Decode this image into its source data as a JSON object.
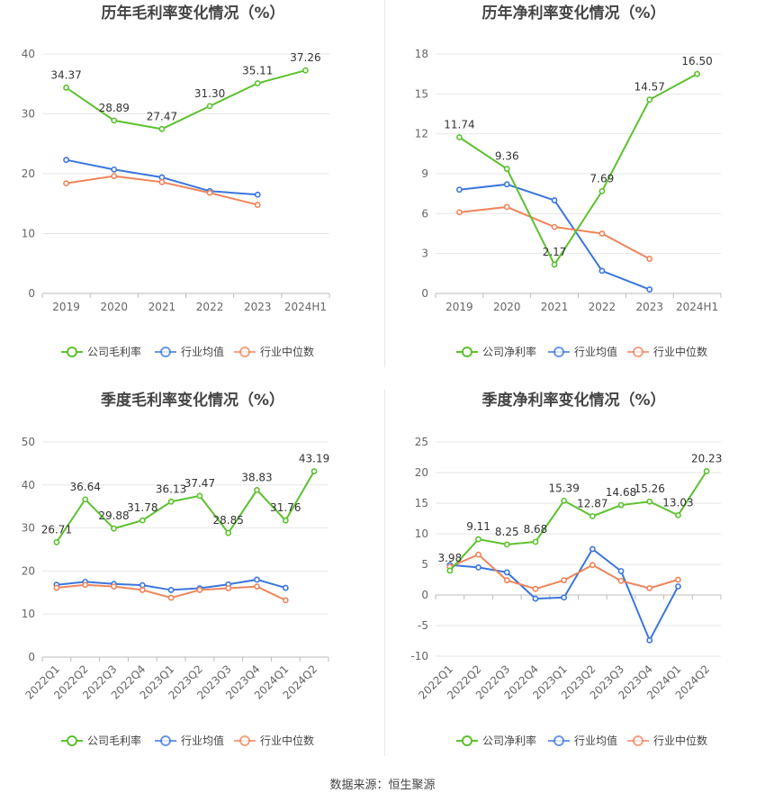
{
  "source_label": "数据来源：恒生聚源",
  "colors": {
    "company": "#5cc12e",
    "industry_avg": "#3a76dd",
    "industry_median": "#f0845a",
    "grid": "#e6e6e6",
    "axis": "#bbbbbb",
    "tick_text": "#666666",
    "title_text": "#444444"
  },
  "chart_data": [
    {
      "type": "line",
      "title": "历年毛利率变化情况（%）",
      "categories": [
        "2019",
        "2020",
        "2021",
        "2022",
        "2023",
        "2024H1"
      ],
      "ylim": [
        0,
        40
      ],
      "yticks": [
        0,
        10,
        20,
        30,
        40
      ],
      "grid": true,
      "legend": "bottom",
      "series": [
        {
          "name": "公司毛利率",
          "color_key": "company",
          "labels": true,
          "values": [
            34.37,
            28.89,
            27.47,
            31.3,
            35.11,
            37.26
          ]
        },
        {
          "name": "行业均值",
          "color_key": "industry_avg",
          "labels": false,
          "values": [
            22.3,
            20.7,
            19.4,
            17.1,
            16.5,
            null
          ]
        },
        {
          "name": "行业中位数",
          "color_key": "industry_median",
          "labels": false,
          "values": [
            18.4,
            19.6,
            18.6,
            16.8,
            14.8,
            null
          ]
        }
      ],
      "data_labels": [
        "34.37",
        "28.89",
        "27.47",
        "31.30",
        "35.11",
        "37.26"
      ]
    },
    {
      "type": "line",
      "title": "历年净利率变化情况（%）",
      "categories": [
        "2019",
        "2020",
        "2021",
        "2022",
        "2023",
        "2024H1"
      ],
      "ylim": [
        0,
        18
      ],
      "yticks": [
        0,
        3,
        6,
        9,
        12,
        15,
        18
      ],
      "grid": true,
      "legend": "bottom",
      "series": [
        {
          "name": "公司净利率",
          "color_key": "company",
          "labels": true,
          "values": [
            11.74,
            9.36,
            2.17,
            7.69,
            14.57,
            16.5
          ]
        },
        {
          "name": "行业均值",
          "color_key": "industry_avg",
          "labels": false,
          "values": [
            7.8,
            8.2,
            7.0,
            1.7,
            0.3,
            null
          ]
        },
        {
          "name": "行业中位数",
          "color_key": "industry_median",
          "labels": false,
          "values": [
            6.1,
            6.5,
            5.0,
            4.5,
            2.6,
            null
          ]
        }
      ],
      "data_labels": [
        "11.74",
        "9.36",
        "2.17",
        "7.69",
        "14.57",
        "16.50"
      ]
    },
    {
      "type": "line",
      "title": "季度毛利率变化情况（%）",
      "categories": [
        "2022Q1",
        "2022Q2",
        "2022Q3",
        "2022Q4",
        "2023Q1",
        "2023Q2",
        "2023Q3",
        "2023Q4",
        "2024Q1",
        "2024Q2"
      ],
      "ylim": [
        0,
        50
      ],
      "yticks": [
        0,
        10,
        20,
        30,
        40,
        50
      ],
      "grid": true,
      "legend": "bottom",
      "rotate_x_labels": true,
      "series": [
        {
          "name": "公司毛利率",
          "color_key": "company",
          "labels": true,
          "values": [
            26.71,
            36.64,
            29.88,
            31.78,
            36.13,
            37.47,
            28.85,
            38.83,
            31.76,
            43.19
          ]
        },
        {
          "name": "行业均值",
          "color_key": "industry_avg",
          "labels": false,
          "values": [
            16.8,
            17.5,
            17.0,
            16.7,
            15.6,
            16.0,
            16.9,
            18.0,
            16.1,
            null
          ]
        },
        {
          "name": "行业中位数",
          "color_key": "industry_median",
          "labels": false,
          "values": [
            16.1,
            16.8,
            16.4,
            15.6,
            13.8,
            15.6,
            16.0,
            16.4,
            13.2,
            null
          ]
        }
      ],
      "data_labels": [
        "26.71",
        "36.64",
        "29.88",
        "31.78",
        "36.13",
        "37.47",
        "28.85",
        "38.83",
        "31.76",
        "43.19"
      ]
    },
    {
      "type": "line",
      "title": "季度净利率变化情况（%）",
      "categories": [
        "2022Q1",
        "2022Q2",
        "2022Q3",
        "2022Q4",
        "2023Q1",
        "2023Q2",
        "2023Q3",
        "2023Q4",
        "2024Q1",
        "2024Q2"
      ],
      "ylim": [
        -10,
        25
      ],
      "yticks": [
        -10,
        -5,
        0,
        5,
        10,
        15,
        20,
        25
      ],
      "grid": true,
      "legend": "bottom",
      "rotate_x_labels": true,
      "series": [
        {
          "name": "公司净利率",
          "color_key": "company",
          "labels": true,
          "values": [
            3.98,
            9.11,
            8.25,
            8.68,
            15.39,
            12.87,
            14.68,
            15.26,
            13.03,
            20.23
          ]
        },
        {
          "name": "行业均值",
          "color_key": "industry_avg",
          "labels": false,
          "values": [
            4.9,
            4.5,
            3.7,
            -0.6,
            -0.4,
            7.5,
            3.9,
            -7.4,
            1.4,
            null
          ]
        },
        {
          "name": "行业中位数",
          "color_key": "industry_median",
          "labels": false,
          "values": [
            4.6,
            6.6,
            2.4,
            1.0,
            2.4,
            4.9,
            2.3,
            1.1,
            2.5,
            null
          ]
        }
      ],
      "data_labels": [
        "3.98",
        "9.11",
        "8.25",
        "8.68",
        "15.39",
        "12.87",
        "14.68",
        "15.26",
        "13.03",
        "20.23"
      ]
    }
  ]
}
